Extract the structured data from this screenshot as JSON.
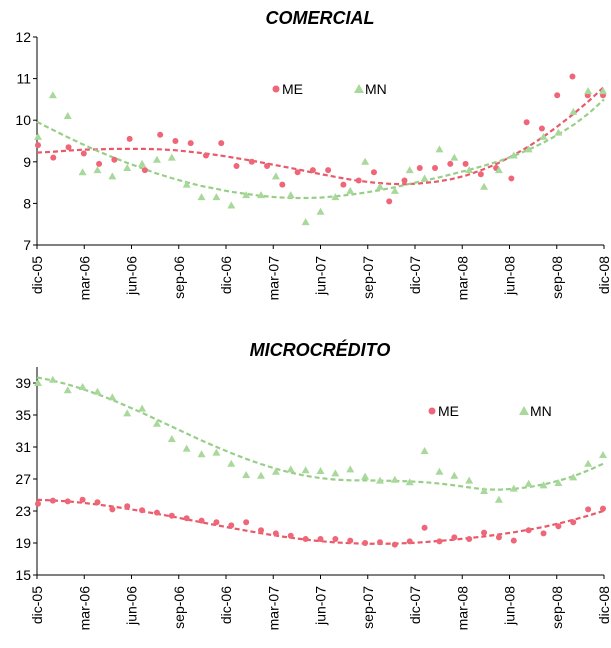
{
  "colors": {
    "ME": "#ee6677",
    "MN": "#a8d89a",
    "ME_trend": "#e85a6a",
    "MN_trend": "#98cf88"
  },
  "chart_data": [
    {
      "type": "scatter",
      "title": "COMERCIAL",
      "xlabel": "",
      "ylabel": "",
      "ylim": [
        7,
        12
      ],
      "yticks": [
        7,
        8,
        9,
        10,
        11,
        12
      ],
      "x_tick_labels": [
        "dic-05",
        "mar-06",
        "jun-06",
        "sep-06",
        "dic-06",
        "mar-07",
        "jun-07",
        "sep-07",
        "dic-07",
        "mar-08",
        "jun-08",
        "sep-08",
        "dic-08"
      ],
      "x_range_months": "dic-05 to dic-08",
      "legend": {
        "position": "top-center",
        "entries": [
          "ME",
          "MN"
        ]
      },
      "series": [
        {
          "name": "ME",
          "marker": "circle",
          "values": [
            9.4,
            9.1,
            9.35,
            9.2,
            8.95,
            9.05,
            9.55,
            8.8,
            9.65,
            9.5,
            9.45,
            9.15,
            9.45,
            8.9,
            9.0,
            8.9,
            8.45,
            8.75,
            8.8,
            8.8,
            8.45,
            8.55,
            8.75,
            8.05,
            8.55,
            8.85,
            8.85,
            8.95,
            8.95,
            8.7,
            8.85,
            8.6,
            9.95,
            9.8,
            10.6,
            11.05,
            10.6,
            10.6
          ],
          "trend": [
            9.22,
            9.24,
            9.27,
            9.29,
            9.3,
            9.31,
            9.31,
            9.31,
            9.3,
            9.28,
            9.24,
            9.2,
            9.15,
            9.09,
            9.03,
            8.96,
            8.89,
            8.82,
            8.74,
            8.67,
            8.6,
            8.54,
            8.5,
            8.47,
            8.46,
            8.48,
            8.52,
            8.58,
            8.67,
            8.8,
            8.95,
            9.14,
            9.35,
            9.59,
            9.86,
            10.15,
            10.46,
            10.8
          ]
        },
        {
          "name": "MN",
          "marker": "triangle",
          "values": [
            9.6,
            10.6,
            10.1,
            8.75,
            8.8,
            8.65,
            8.85,
            8.95,
            9.05,
            9.1,
            8.45,
            8.15,
            8.15,
            7.95,
            8.2,
            8.2,
            8.65,
            8.2,
            7.55,
            7.8,
            8.15,
            8.3,
            9.0,
            8.4,
            8.3,
            8.8,
            8.6,
            9.3,
            9.1,
            8.8,
            8.4,
            8.8,
            9.15,
            9.3,
            9.6,
            9.7,
            10.2,
            10.7,
            10.7
          ],
          "trend": [
            9.96,
            9.78,
            9.6,
            9.43,
            9.27,
            9.12,
            8.98,
            8.85,
            8.72,
            8.61,
            8.51,
            8.42,
            8.35,
            8.28,
            8.23,
            8.18,
            8.15,
            8.13,
            8.13,
            8.14,
            8.17,
            8.21,
            8.26,
            8.32,
            8.39,
            8.47,
            8.55,
            8.63,
            8.72,
            8.81,
            8.91,
            9.02,
            9.15,
            9.3,
            9.47,
            9.67,
            9.9,
            10.17,
            10.5
          ]
        }
      ]
    },
    {
      "type": "scatter",
      "title": "MICROCRÉDITO",
      "xlabel": "",
      "ylabel": "",
      "ylim": [
        15,
        41
      ],
      "yticks": [
        15,
        19,
        23,
        27,
        31,
        35,
        39
      ],
      "x_tick_labels": [
        "dic-05",
        "mar-06",
        "jun-06",
        "sep-06",
        "dic-06",
        "mar-07",
        "jun-07",
        "sep-07",
        "dic-07",
        "mar-08",
        "jun-08",
        "sep-08",
        "dic-08"
      ],
      "x_range_months": "dic-05 to dic-08",
      "legend": {
        "position": "top-right",
        "entries": [
          "ME",
          "MN"
        ]
      },
      "series": [
        {
          "name": "ME",
          "marker": "circle",
          "values": [
            23.9,
            24.3,
            24.2,
            24.4,
            24.1,
            23.2,
            23.6,
            23.1,
            22.8,
            22.4,
            22.1,
            21.8,
            21.6,
            21.2,
            21.6,
            20.6,
            20.2,
            19.9,
            19.5,
            19.5,
            19.5,
            19.3,
            19.0,
            19.1,
            18.8,
            19.2,
            20.9,
            19.2,
            19.7,
            19.5,
            20.3,
            19.7,
            19.3,
            20.6,
            20.2,
            21.1,
            21.6,
            23.2,
            23.3
          ],
          "trend": [
            24.4,
            24.33,
            24.21,
            24.04,
            23.83,
            23.58,
            23.3,
            22.99,
            22.66,
            22.32,
            21.96,
            21.6,
            21.24,
            20.89,
            20.55,
            20.22,
            19.93,
            19.66,
            19.42,
            19.23,
            19.08,
            18.97,
            18.91,
            18.9,
            18.93,
            19.0,
            19.11,
            19.26,
            19.43,
            19.62,
            19.83,
            20.07,
            20.35,
            20.67,
            21.03,
            21.45,
            21.93,
            22.45,
            23.03
          ]
        },
        {
          "name": "MN",
          "marker": "triangle",
          "values": [
            39.0,
            39.4,
            38.1,
            38.5,
            37.9,
            37.2,
            35.2,
            35.8,
            33.9,
            32.0,
            30.8,
            30.1,
            30.3,
            28.9,
            27.5,
            27.4,
            27.9,
            28.2,
            28.1,
            28.0,
            27.7,
            28.2,
            27.3,
            26.8,
            26.9,
            26.6,
            30.5,
            27.9,
            27.4,
            26.8,
            25.5,
            24.4,
            25.8,
            26.4,
            26.2,
            26.5,
            27.2,
            28.9,
            30.0
          ],
          "trend": [
            39.7,
            39.33,
            38.86,
            38.29,
            37.64,
            36.92,
            36.13,
            35.31,
            34.45,
            33.58,
            32.71,
            31.85,
            31.03,
            30.25,
            29.53,
            28.87,
            28.29,
            27.8,
            27.4,
            27.11,
            26.92,
            26.84,
            26.82,
            26.8,
            26.76,
            26.7,
            26.6,
            26.43,
            26.2,
            25.94,
            25.7,
            25.66,
            25.78,
            26.0,
            26.34,
            26.8,
            27.39,
            28.11,
            28.95
          ]
        }
      ]
    }
  ]
}
